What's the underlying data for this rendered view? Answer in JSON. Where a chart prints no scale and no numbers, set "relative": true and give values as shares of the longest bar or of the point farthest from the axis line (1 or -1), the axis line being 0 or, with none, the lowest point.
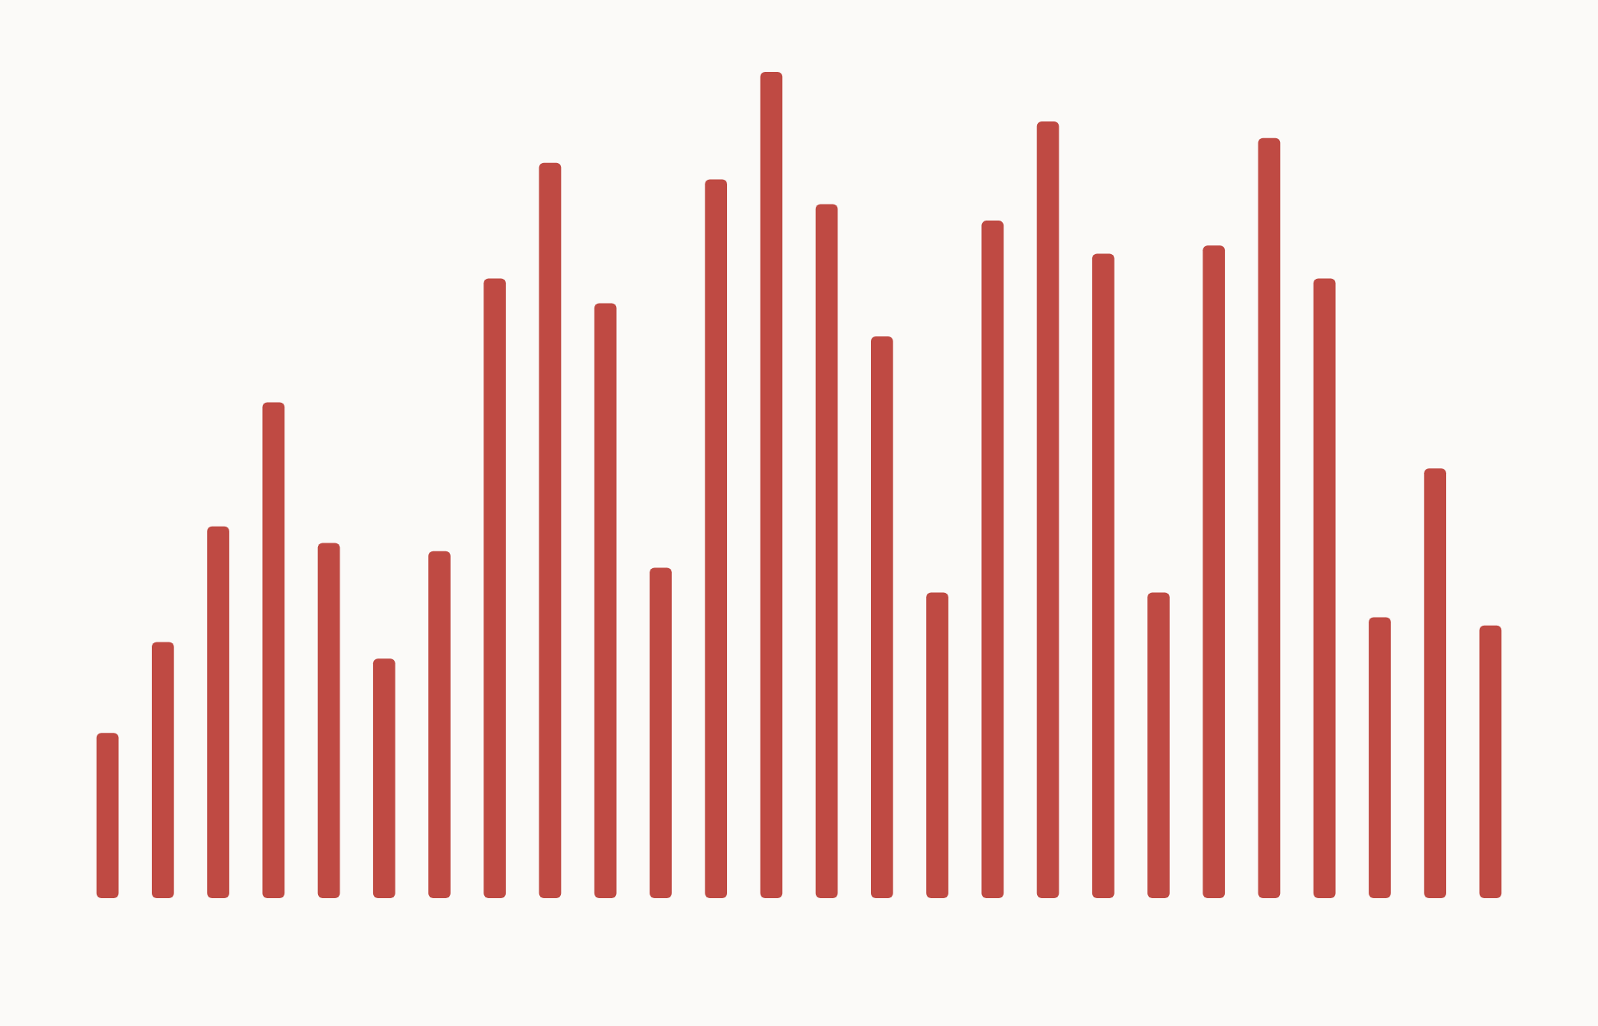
{
  "chart_data": {
    "type": "bar",
    "relative": true,
    "categories": [
      null,
      null,
      null,
      null,
      null,
      null,
      null,
      null,
      null,
      null,
      null,
      null,
      null,
      null,
      null,
      null,
      null,
      null,
      null,
      null,
      null,
      null,
      null,
      null,
      null,
      null
    ],
    "values": [
      0.2,
      0.31,
      0.45,
      0.6,
      0.43,
      0.29,
      0.42,
      0.75,
      0.89,
      0.72,
      0.4,
      0.87,
      1,
      0.84,
      0.68,
      0.37,
      0.82,
      0.94,
      0.78,
      0.37,
      0.79,
      0.92,
      0.75,
      0.34,
      0.52,
      0.33
    ],
    "color": "#bf4a43"
  }
}
